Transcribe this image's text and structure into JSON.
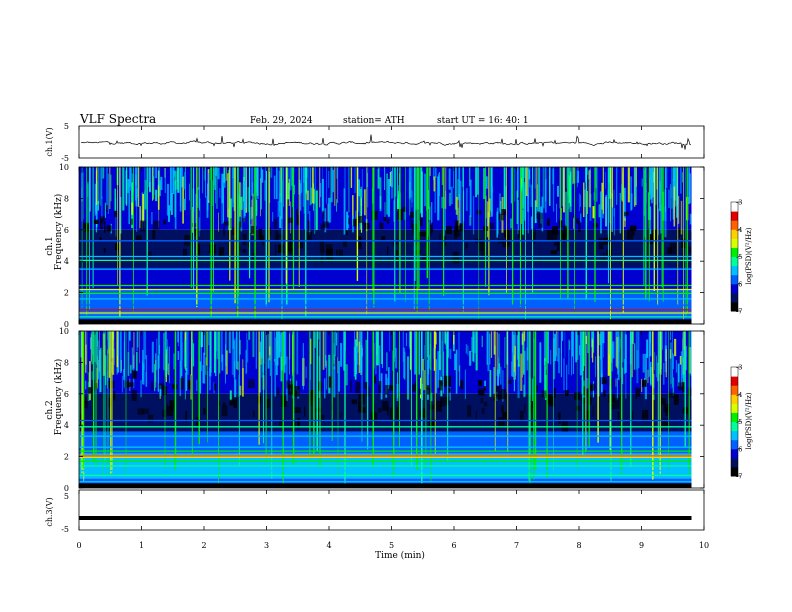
{
  "header": {
    "title": "VLF  Spectra",
    "date": "Feb. 29, 2024",
    "station": "station= ATH",
    "start_ut": "start  UT  =   16: 40: 1"
  },
  "chart_data": [
    {
      "type": "line",
      "title": "",
      "ylabel": "ch.1(V)",
      "ylim": [
        -5,
        5
      ],
      "yticks": [
        "5",
        "-5"
      ],
      "xlim": [
        0,
        10
      ],
      "series": [
        {
          "values": [
            -0.5,
            0.5
          ]
        }
      ],
      "x_range_min": [
        0,
        9.8
      ]
    },
    {
      "type": "heatmap",
      "ylabel_line1": "ch.1",
      "ylabel_line2": "Frequency  (kHz)",
      "ylim": [
        0,
        10
      ],
      "yticks": [
        "0",
        "2",
        "4",
        "6",
        "8",
        "10"
      ],
      "xlim": [
        0,
        10
      ],
      "x_range_min": [
        0,
        9.8
      ],
      "colorbar": {
        "label": "log(PSD)(V²/Hz)",
        "range": [
          -7,
          -3
        ],
        "ticks": [
          "-3",
          "-4",
          "-5",
          "-6",
          "-7"
        ]
      }
    },
    {
      "type": "heatmap",
      "ylabel_line1": "ch.2",
      "ylabel_line2": "Frequency  (kHz)",
      "ylim": [
        0,
        10
      ],
      "yticks": [
        "0",
        "2",
        "4",
        "6",
        "8",
        "10"
      ],
      "xlim": [
        0,
        10
      ],
      "x_range_min": [
        0,
        9.8
      ],
      "colorbar": {
        "label": "log(PSD)(V²/Hz)",
        "range": [
          -7,
          -3
        ],
        "ticks": [
          "-3",
          "-4",
          "-5",
          "-6",
          "-7"
        ]
      }
    },
    {
      "type": "line",
      "ylabel": "ch.3(V)",
      "ylim": [
        -5,
        5
      ],
      "yticks": [
        "5",
        "-5"
      ],
      "xlim": [
        0,
        10
      ],
      "xticks": [
        "0",
        "1",
        "2",
        "3",
        "4",
        "5",
        "6",
        "7",
        "8",
        "9",
        "10"
      ],
      "xlabel": "Time  (min)",
      "series": [
        {
          "values": [
            -2
          ]
        }
      ],
      "x_range_min": [
        0,
        9.8
      ]
    }
  ],
  "colors": {
    "palette": [
      "#000000",
      "#001060",
      "#0000d0",
      "#0060ff",
      "#00c0ff",
      "#00ff9c",
      "#00ee00",
      "#d8ff00",
      "#ffd000",
      "#ff6000",
      "#e00000",
      "#ffffff"
    ]
  }
}
